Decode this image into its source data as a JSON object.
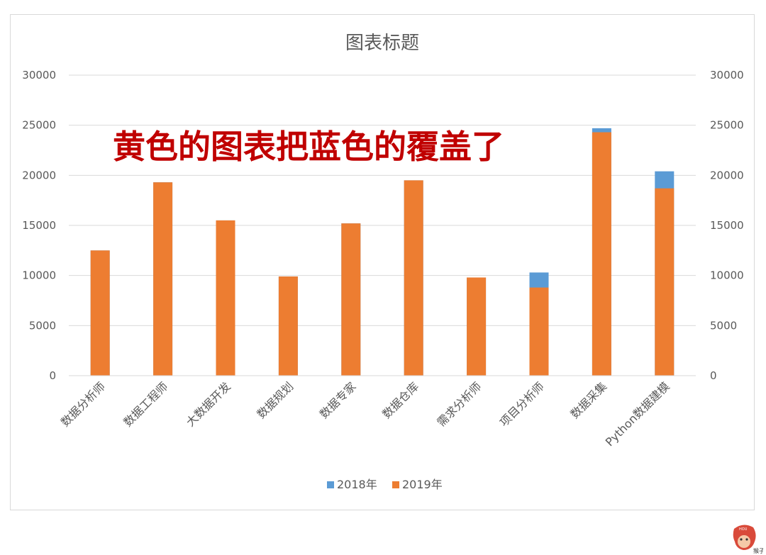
{
  "chart_data": {
    "type": "bar",
    "title": "图表标题",
    "annotation": "黄色的图表把蓝色的覆盖了",
    "categories": [
      "数据分析师",
      "数据工程师",
      "大数据开发",
      "数据规划",
      "数据专家",
      "数据仓库",
      "需求分析师",
      "项目分析师",
      "数据采集",
      "Python数据建模"
    ],
    "series": [
      {
        "name": "2018年",
        "color": "#5b9bd5",
        "values": [
          12500,
          19300,
          15500,
          9900,
          15200,
          19500,
          9800,
          10300,
          24700,
          20400
        ]
      },
      {
        "name": "2019年",
        "color": "#ed7d31",
        "values": [
          12500,
          19300,
          15500,
          9900,
          15200,
          19500,
          9800,
          8800,
          24300,
          18700
        ]
      }
    ],
    "ylim": [
      0,
      30000
    ],
    "yticks": [
      0,
      5000,
      10000,
      15000,
      20000,
      25000,
      30000
    ],
    "y_axis_left_labels": [
      "0",
      "5000",
      "10000",
      "15000",
      "20000",
      "25000",
      "30000"
    ],
    "y_axis_right_labels": [
      "0",
      "5000",
      "10000",
      "15000",
      "20000",
      "25000",
      "30000"
    ],
    "gridlines": true,
    "legend_position": "bottom",
    "overlap": "2019年 bars drawn on top of 2018年 bars"
  },
  "watermark": {
    "text": "猴子",
    "badge_text": "HOU",
    "icon": "monkey-face-icon",
    "color": "#c0392b"
  }
}
